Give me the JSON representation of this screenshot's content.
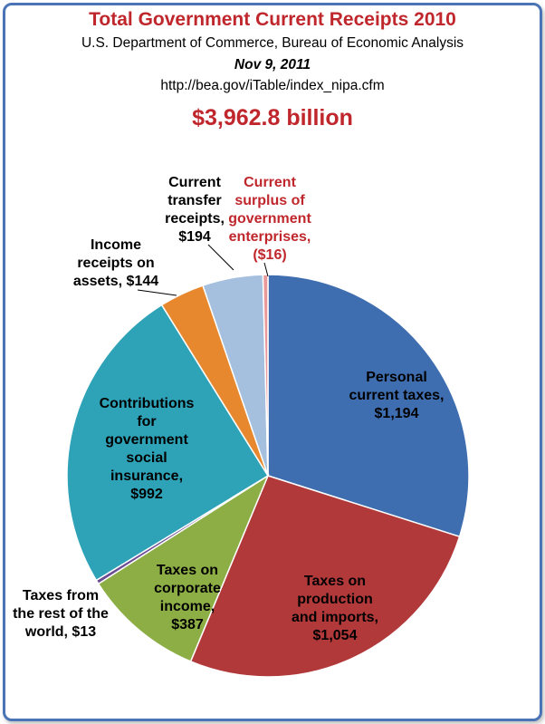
{
  "header": {
    "title": "Total Government Current Receipts 2010",
    "source": "U.S. Department of Commerce, Bureau of Economic Analysis",
    "date": "Nov 9, 2011",
    "url": "http://bea.gov/iTable/index_nipa.cfm",
    "total": "$3,962.8 billion"
  },
  "chart_data": {
    "type": "pie",
    "title": "Total Government Current Receipts 2010",
    "unit": "$ billion",
    "total": 3962.8,
    "start": "12 o'clock, clockwise",
    "slices": [
      {
        "name": "Personal current taxes",
        "value": 1194,
        "color": "#3f6eb0",
        "label": "Personal\ncurrent taxes,\n$1,194"
      },
      {
        "name": "Taxes on production and imports",
        "value": 1054,
        "color": "#b2393a",
        "label": "Taxes on\nproduction\nand imports,\n$1,054"
      },
      {
        "name": "Taxes on corporate income",
        "value": 387,
        "color": "#8cae45",
        "label": "Taxes on\ncorporate\nincome,\n$387"
      },
      {
        "name": "Taxes from the rest of the world",
        "value": 13,
        "color": "#6a4c93",
        "label": "Taxes from\nthe rest of the\nworld, $13"
      },
      {
        "name": "Contributions for government social insurance",
        "value": 992,
        "color": "#2ea3b8",
        "label": "Contributions\nfor\ngovernment\nsocial\ninsurance,\n$992"
      },
      {
        "name": "Income receipts on assets",
        "value": 144,
        "color": "#e8882e",
        "label": "Income\nreceipts on\nassets, $144"
      },
      {
        "name": "Current transfer receipts",
        "value": 194,
        "color": "#a5bfdf",
        "label": "Current\ntransfer\nreceipts,\n$194"
      },
      {
        "name": "Current surplus of government enterprises",
        "value": -16,
        "color": "#e89a9a",
        "label": "Current\nsurplus of\ngovernment\nenterprises,\n($16)",
        "label_color": "#c0272d"
      }
    ]
  }
}
